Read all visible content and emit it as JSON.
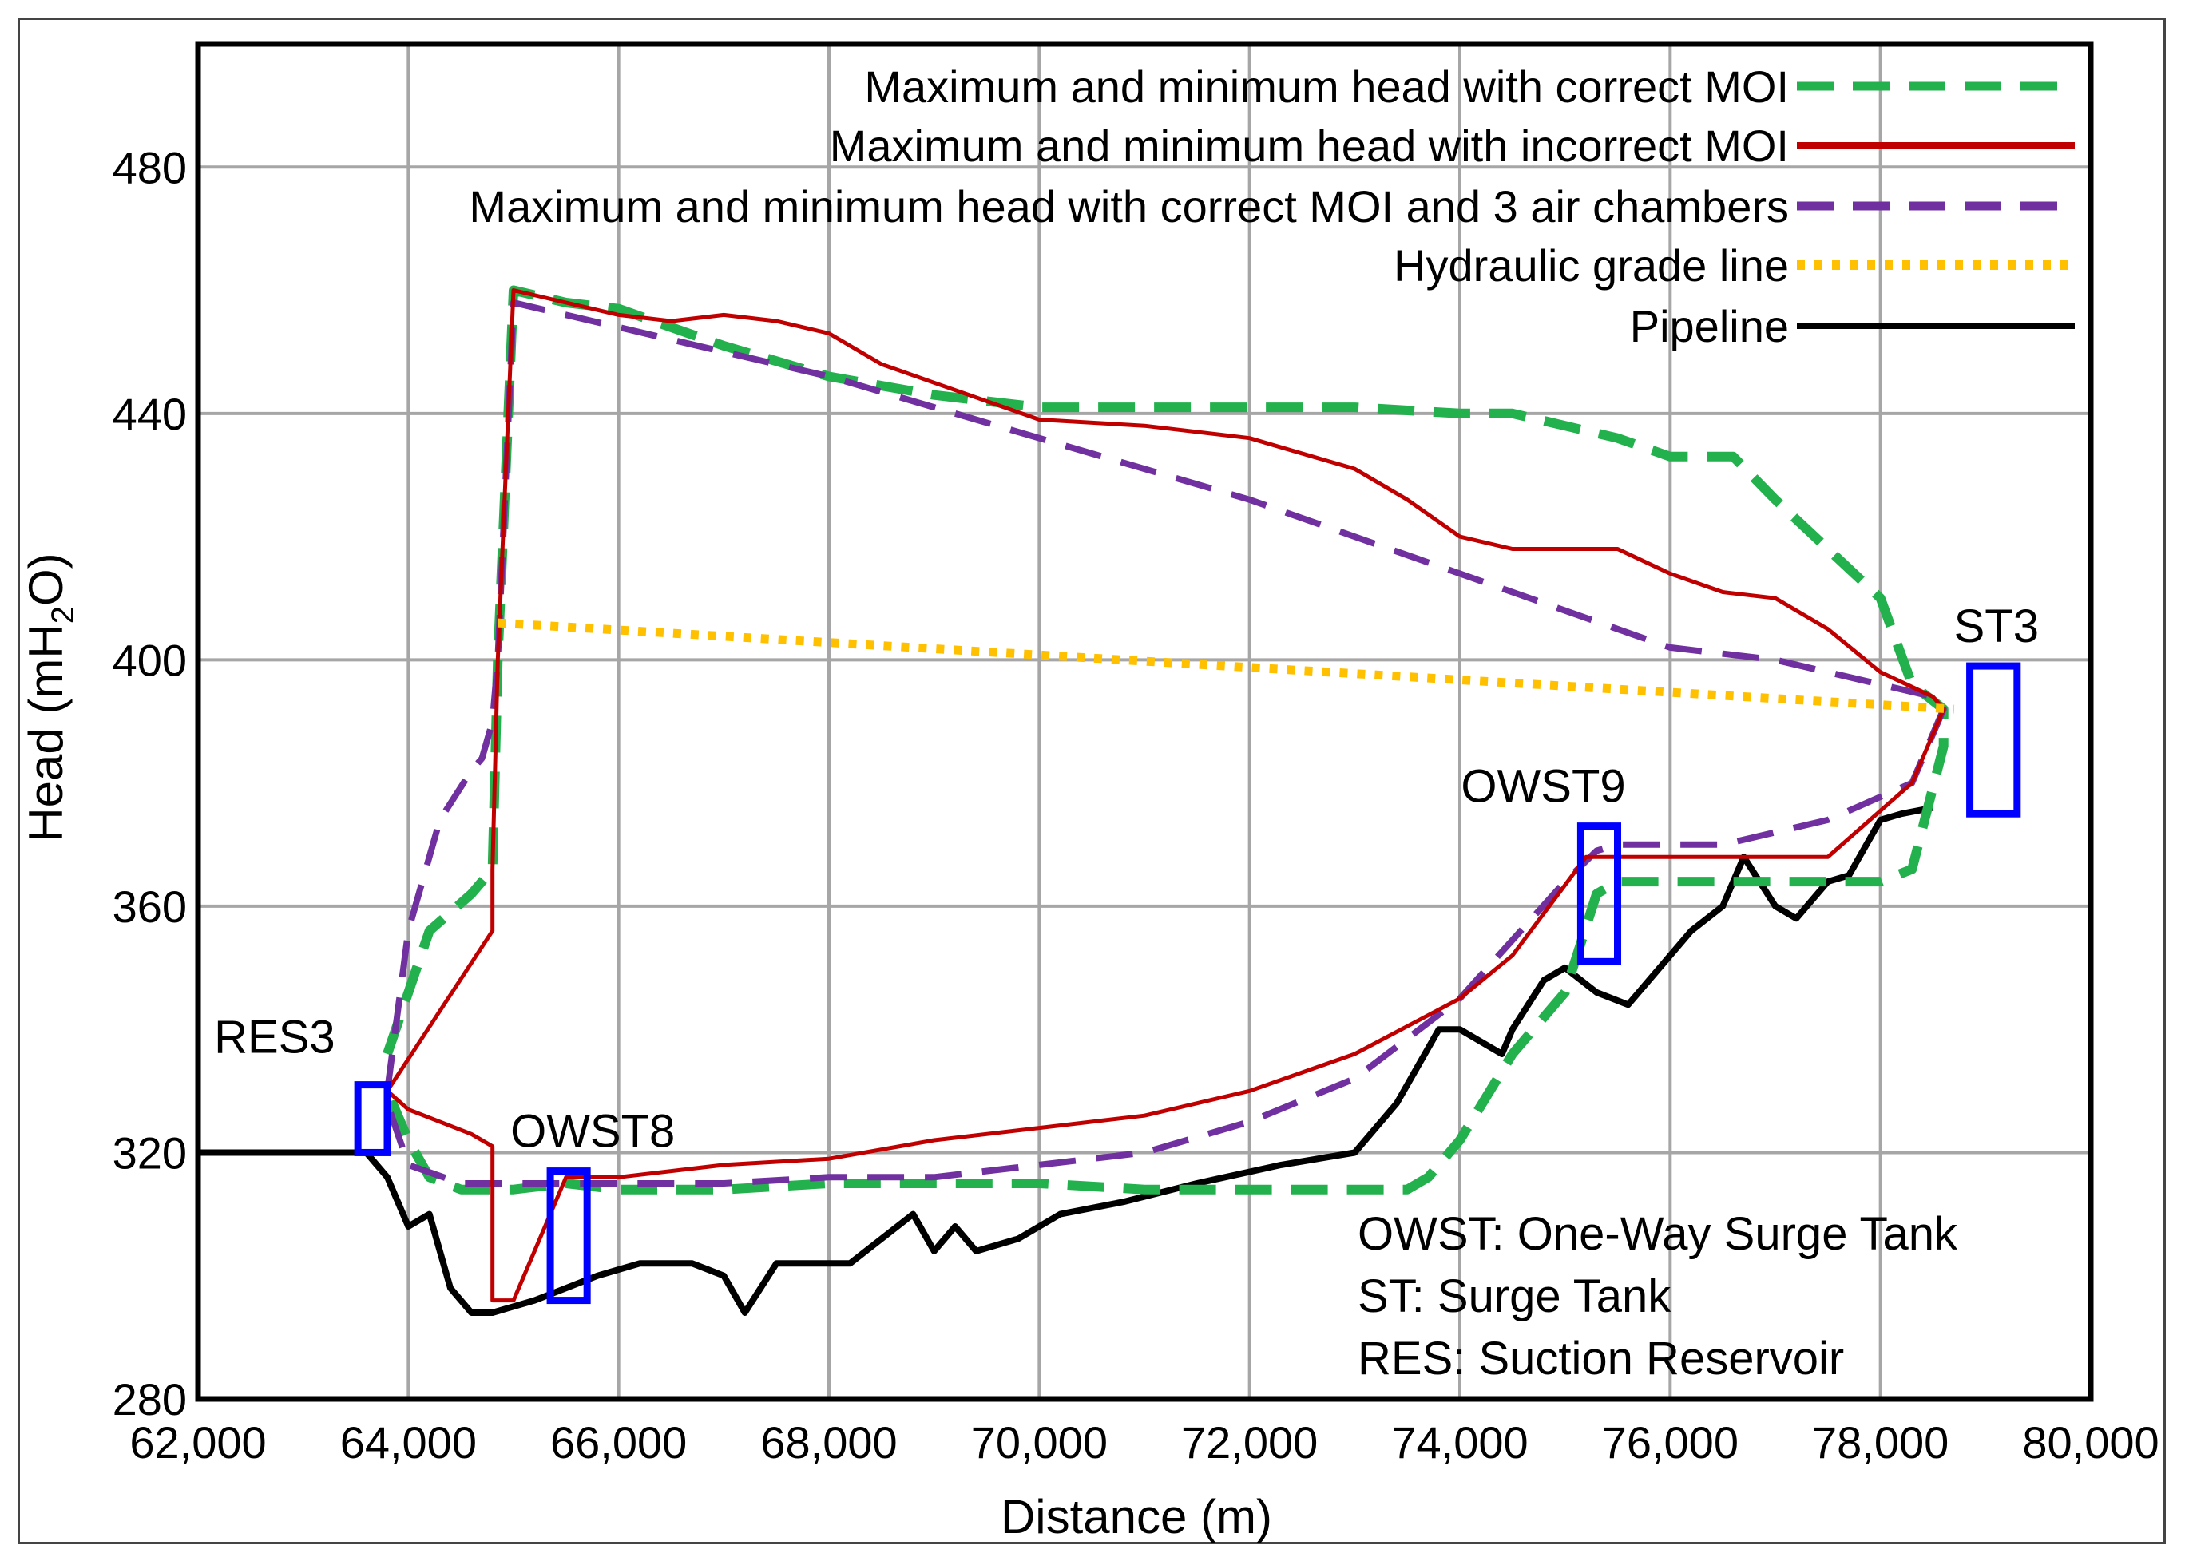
{
  "chart_data": {
    "type": "line",
    "title": "",
    "xlabel": "Distance (m)",
    "ylabel_main": "Head (mH",
    "ylabel_sub": "2",
    "ylabel_tail": "O)",
    "xlim": [
      62000,
      80000
    ],
    "ylim": [
      280,
      500
    ],
    "x_ticks": [
      62000,
      64000,
      66000,
      68000,
      70000,
      72000,
      74000,
      76000,
      78000,
      80000
    ],
    "x_tick_labels": [
      "62,000",
      "64,000",
      "66,000",
      "68,000",
      "70,000",
      "72,000",
      "74,000",
      "76,000",
      "78,000",
      "80,000"
    ],
    "y_ticks": [
      280,
      320,
      360,
      400,
      440,
      480
    ],
    "y_tick_labels": [
      "280",
      "320",
      "360",
      "400",
      "440",
      "480"
    ],
    "grid": true,
    "colors": {
      "correct": "#22b14c",
      "incorrect": "#c00000",
      "air": "#7030a0",
      "hgl": "#ffc000",
      "pipeline": "#000000",
      "tank": "#0000ff"
    },
    "legend": [
      {
        "label": "Maximum and minimum head with correct MOI",
        "color": "#22b14c",
        "style": "dashed"
      },
      {
        "label": "Maximum and minimum head with incorrect MOI",
        "color": "#c00000",
        "style": "solid"
      },
      {
        "label": "Maximum and minimum head with correct MOI and 3 air chambers",
        "color": "#7030a0",
        "style": "dashed"
      },
      {
        "label": "Hydraulic grade line",
        "color": "#ffc000",
        "style": "dotted"
      },
      {
        "label": "Pipeline",
        "color": "#000000",
        "style": "solid"
      }
    ],
    "series": [
      {
        "name": "Pipeline",
        "x": [
          62000,
          63600,
          63800,
          64000,
          64200,
          64300,
          64400,
          64600,
          64800,
          65200,
          65500,
          65800,
          66200,
          66700,
          67000,
          67200,
          67500,
          68200,
          68800,
          69000,
          69200,
          69400,
          69800,
          70200,
          70800,
          71500,
          72300,
          73000,
          73400,
          73600,
          73800,
          74000,
          74200,
          74400,
          74500,
          74800,
          75000,
          75300,
          75600,
          75800,
          76200,
          76500,
          76700,
          77000,
          77200,
          77500,
          77700,
          78000,
          78200,
          78500
        ],
        "y": [
          320,
          320,
          316,
          308,
          310,
          304,
          298,
          294,
          294,
          296,
          298,
          300,
          302,
          302,
          300,
          294,
          302,
          302,
          310,
          304,
          308,
          304,
          306,
          310,
          312,
          315,
          318,
          320,
          328,
          334,
          340,
          340,
          338,
          336,
          340,
          348,
          350,
          346,
          344,
          348,
          356,
          360,
          368,
          360,
          358,
          364,
          365,
          374,
          375,
          376
        ]
      },
      {
        "name": "Maximum and minimum head with correct MOI",
        "x": [
          63800,
          64200,
          64600,
          64800,
          64850,
          65000,
          65500,
          66000,
          67000,
          68000,
          69000,
          70000,
          71000,
          72000,
          73000,
          74000,
          74500,
          75000,
          75500,
          76000,
          76600,
          77000,
          77500,
          78000,
          78300,
          78600,
          78600,
          78300,
          78000,
          77500,
          77000,
          76000,
          75500,
          75300,
          75000,
          74500,
          74000,
          73700,
          73500,
          73000,
          72000,
          71000,
          70000,
          69000,
          68000,
          67000,
          66000,
          65500,
          65000,
          64800,
          64500,
          64200,
          64000,
          63800
        ],
        "y": [
          336,
          356,
          362,
          366,
          400,
          460,
          458,
          457,
          451,
          446,
          443,
          441,
          441,
          441,
          441,
          440,
          440,
          438,
          436,
          433,
          433,
          426,
          418,
          410,
          396,
          392,
          386,
          366,
          364,
          364,
          364,
          364,
          364,
          362,
          346,
          336,
          322,
          316,
          314,
          314,
          314,
          314,
          315,
          315,
          315,
          314,
          314,
          315,
          314,
          314,
          314,
          316,
          322,
          330
        ]
      },
      {
        "name": "Maximum and minimum head with incorrect MOI",
        "x": [
          63800,
          64800,
          64800,
          64850,
          65000,
          65500,
          66000,
          66500,
          67000,
          67500,
          68000,
          68500,
          69000,
          70000,
          71000,
          72000,
          73000,
          73500,
          74000,
          74500,
          75000,
          75500,
          76000,
          76500,
          77000,
          77500,
          78000,
          78500,
          78600,
          78300,
          77500,
          76500,
          75500,
          75200,
          74500,
          74000,
          73000,
          72000,
          71000,
          70000,
          69000,
          68000,
          67000,
          66000,
          65500,
          65000,
          64800,
          64800,
          64600,
          64000,
          63800
        ],
        "y": [
          330,
          356,
          366,
          400,
          460,
          458,
          456,
          455,
          456,
          455,
          453,
          448,
          445,
          439,
          438,
          436,
          431,
          426,
          420,
          418,
          418,
          418,
          414,
          411,
          410,
          405,
          398,
          394,
          392,
          380,
          368,
          368,
          368,
          368,
          352,
          345,
          336,
          330,
          326,
          324,
          322,
          319,
          318,
          316,
          316,
          296,
          296,
          321,
          323,
          327,
          330
        ]
      },
      {
        "name": "Maximum and minimum head with correct MOI and 3 air chambers",
        "x": [
          63800,
          64000,
          64300,
          64600,
          64700,
          64800,
          64850,
          65000,
          66000,
          67000,
          68000,
          69000,
          70000,
          71000,
          72000,
          73000,
          74000,
          75000,
          75500,
          76000,
          77000,
          78000,
          78500,
          78600,
          78300,
          77500,
          76500,
          75500,
          75300,
          75000,
          74000,
          73000,
          72000,
          71000,
          70000,
          69000,
          68000,
          67000,
          66000,
          65500,
          65000,
          64500,
          64000,
          63800
        ],
        "y": [
          330,
          356,
          374,
          382,
          384,
          390,
          400,
          458,
          454,
          450,
          446,
          441,
          436,
          431,
          426,
          420,
          414,
          408,
          405,
          402,
          400,
          396,
          394,
          392,
          380,
          374,
          370,
          370,
          369,
          364,
          345,
          332,
          325,
          320,
          318,
          316,
          316,
          315,
          315,
          315,
          315,
          315,
          318,
          328
        ]
      },
      {
        "name": "Hydraulic grade line",
        "x": [
          64850,
          78700
        ],
        "y": [
          406,
          392
        ]
      }
    ],
    "tanks": [
      {
        "label": "RES3",
        "x0": 63520,
        "x1": 63800,
        "y0": 320,
        "y1": 331
      },
      {
        "label": "OWST8",
        "x0": 65350,
        "x1": 65700,
        "y0": 296,
        "y1": 317
      },
      {
        "label": "OWST9",
        "x0": 75150,
        "x1": 75500,
        "y0": 351,
        "y1": 373
      },
      {
        "label": "ST3",
        "x0": 78850,
        "x1": 79300,
        "y0": 375,
        "y1": 399
      }
    ],
    "notes": [
      "OWST: One-Way Surge Tank",
      "ST: Surge Tank",
      "RES: Suction Reservoir"
    ]
  }
}
